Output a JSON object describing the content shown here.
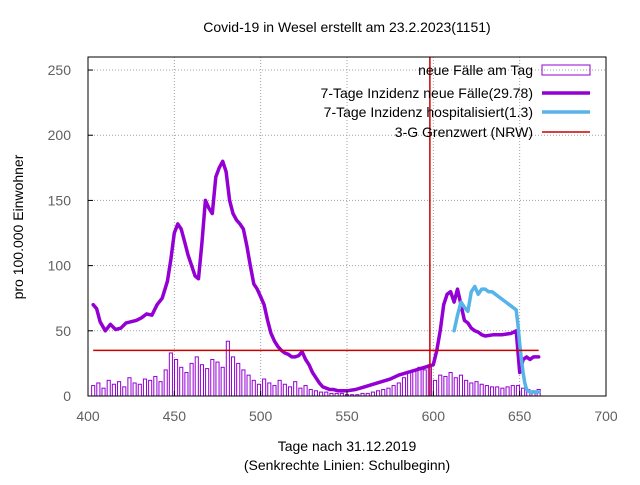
{
  "chart_data": {
    "type": "line",
    "title": "Covid-19 in Wesel erstellt am 23.2.2023(1151)",
    "xlabel": "Tage nach 31.12.2019",
    "xlabel2": "(Senkrechte Linien: Schulbeginn)",
    "ylabel": "pro 100.000 Einwohner",
    "xlim": [
      400,
      700
    ],
    "ylim": [
      0,
      260
    ],
    "xticks": [
      400,
      450,
      500,
      550,
      600,
      650,
      700
    ],
    "yticks": [
      0,
      50,
      100,
      150,
      200,
      250
    ],
    "grid": true,
    "legend_position": "top-right",
    "colors": {
      "daily": "#9400d3",
      "incidence": "#9400d3",
      "hospital": "#56b4e9",
      "threshold": "#cc0000",
      "school": "#cc0000"
    },
    "series": [
      {
        "name": "neue Fälle am Tag",
        "kind": "bar",
        "x": [
          403,
          406,
          409,
          412,
          415,
          418,
          421,
          424,
          427,
          430,
          433,
          436,
          439,
          442,
          445,
          448,
          451,
          454,
          457,
          460,
          463,
          466,
          469,
          472,
          475,
          478,
          481,
          484,
          487,
          490,
          493,
          496,
          499,
          502,
          505,
          508,
          511,
          514,
          517,
          520,
          523,
          526,
          529,
          532,
          535,
          538,
          541,
          544,
          547,
          550,
          553,
          556,
          559,
          562,
          565,
          568,
          571,
          574,
          577,
          580,
          583,
          586,
          589,
          592,
          595,
          598,
          601,
          604,
          607,
          610,
          613,
          616,
          619,
          622,
          625,
          628,
          631,
          634,
          637,
          640,
          643,
          646,
          649,
          652,
          655,
          658,
          661
        ],
        "values": [
          8,
          10,
          6,
          12,
          9,
          11,
          7,
          14,
          10,
          9,
          13,
          12,
          15,
          11,
          20,
          33,
          28,
          22,
          18,
          25,
          30,
          24,
          21,
          28,
          26,
          22,
          42,
          30,
          25,
          20,
          16,
          12,
          9,
          13,
          10,
          8,
          12,
          9,
          7,
          11,
          6,
          8,
          5,
          4,
          3,
          3,
          2,
          2,
          2,
          1,
          1,
          1,
          2,
          2,
          3,
          4,
          5,
          6,
          8,
          10,
          14,
          18,
          20,
          22,
          20,
          24,
          12,
          16,
          15,
          18,
          14,
          16,
          12,
          10,
          11,
          9,
          8,
          7,
          7,
          6,
          7,
          8,
          8,
          6,
          5,
          4,
          5
        ]
      },
      {
        "name": "7-Tage Inzidenz neue Fälle(29.78)",
        "kind": "line",
        "x": [
          403,
          405,
          407,
          410,
          413,
          416,
          419,
          422,
          425,
          428,
          431,
          434,
          437,
          440,
          443,
          446,
          448,
          450,
          452,
          454,
          456,
          458,
          460,
          462,
          464,
          466,
          468,
          470,
          472,
          474,
          476,
          478,
          480,
          482,
          484,
          486,
          488,
          490,
          492,
          494,
          496,
          498,
          500,
          502,
          504,
          506,
          508,
          510,
          512,
          514,
          516,
          518,
          520,
          522,
          524,
          526,
          528,
          530,
          532,
          534,
          536,
          538,
          540,
          542,
          545,
          550,
          555,
          560,
          565,
          570,
          575,
          580,
          585,
          590,
          595,
          600,
          602,
          604,
          606,
          608,
          610,
          612,
          614,
          616,
          618,
          620,
          622,
          624,
          626,
          628,
          630,
          635,
          640,
          645,
          648,
          650,
          652,
          654,
          656,
          658,
          661
        ],
        "values": [
          70,
          67,
          57,
          50,
          55,
          51,
          52,
          56,
          57,
          58,
          60,
          63,
          62,
          70,
          75,
          88,
          105,
          125,
          132,
          128,
          118,
          108,
          100,
          92,
          90,
          118,
          150,
          144,
          140,
          168,
          175,
          180,
          172,
          150,
          140,
          135,
          132,
          128,
          115,
          100,
          86,
          82,
          76,
          70,
          58,
          48,
          42,
          38,
          35,
          33,
          32,
          30,
          30,
          31,
          34,
          28,
          24,
          18,
          14,
          10,
          7,
          6,
          5,
          5,
          4,
          4,
          5,
          7,
          9,
          11,
          13,
          16,
          18,
          20,
          22,
          24,
          35,
          50,
          70,
          78,
          80,
          72,
          82,
          70,
          58,
          56,
          52,
          50,
          49,
          47,
          46,
          47,
          47,
          48,
          50,
          18,
          28,
          30,
          28,
          30,
          30
        ]
      },
      {
        "name": "7-Tage Inzidenz hospitalisiert(1.3)",
        "kind": "line",
        "x": [
          612,
          614,
          616,
          618,
          620,
          622,
          624,
          626,
          628,
          630,
          632,
          634,
          636,
          638,
          640,
          642,
          644,
          646,
          648,
          649,
          650,
          651,
          652,
          653,
          654,
          656,
          658,
          661
        ],
        "values": [
          50,
          62,
          72,
          68,
          65,
          80,
          84,
          78,
          82,
          82,
          80,
          80,
          78,
          76,
          74,
          72,
          70,
          68,
          66,
          55,
          40,
          28,
          18,
          10,
          5,
          3,
          3,
          3
        ]
      },
      {
        "name": "3-G Grenzwert (NRW)",
        "kind": "hline",
        "x": [
          403,
          661
        ],
        "values": [
          35,
          35
        ]
      }
    ],
    "vlines": [
      598
    ]
  }
}
